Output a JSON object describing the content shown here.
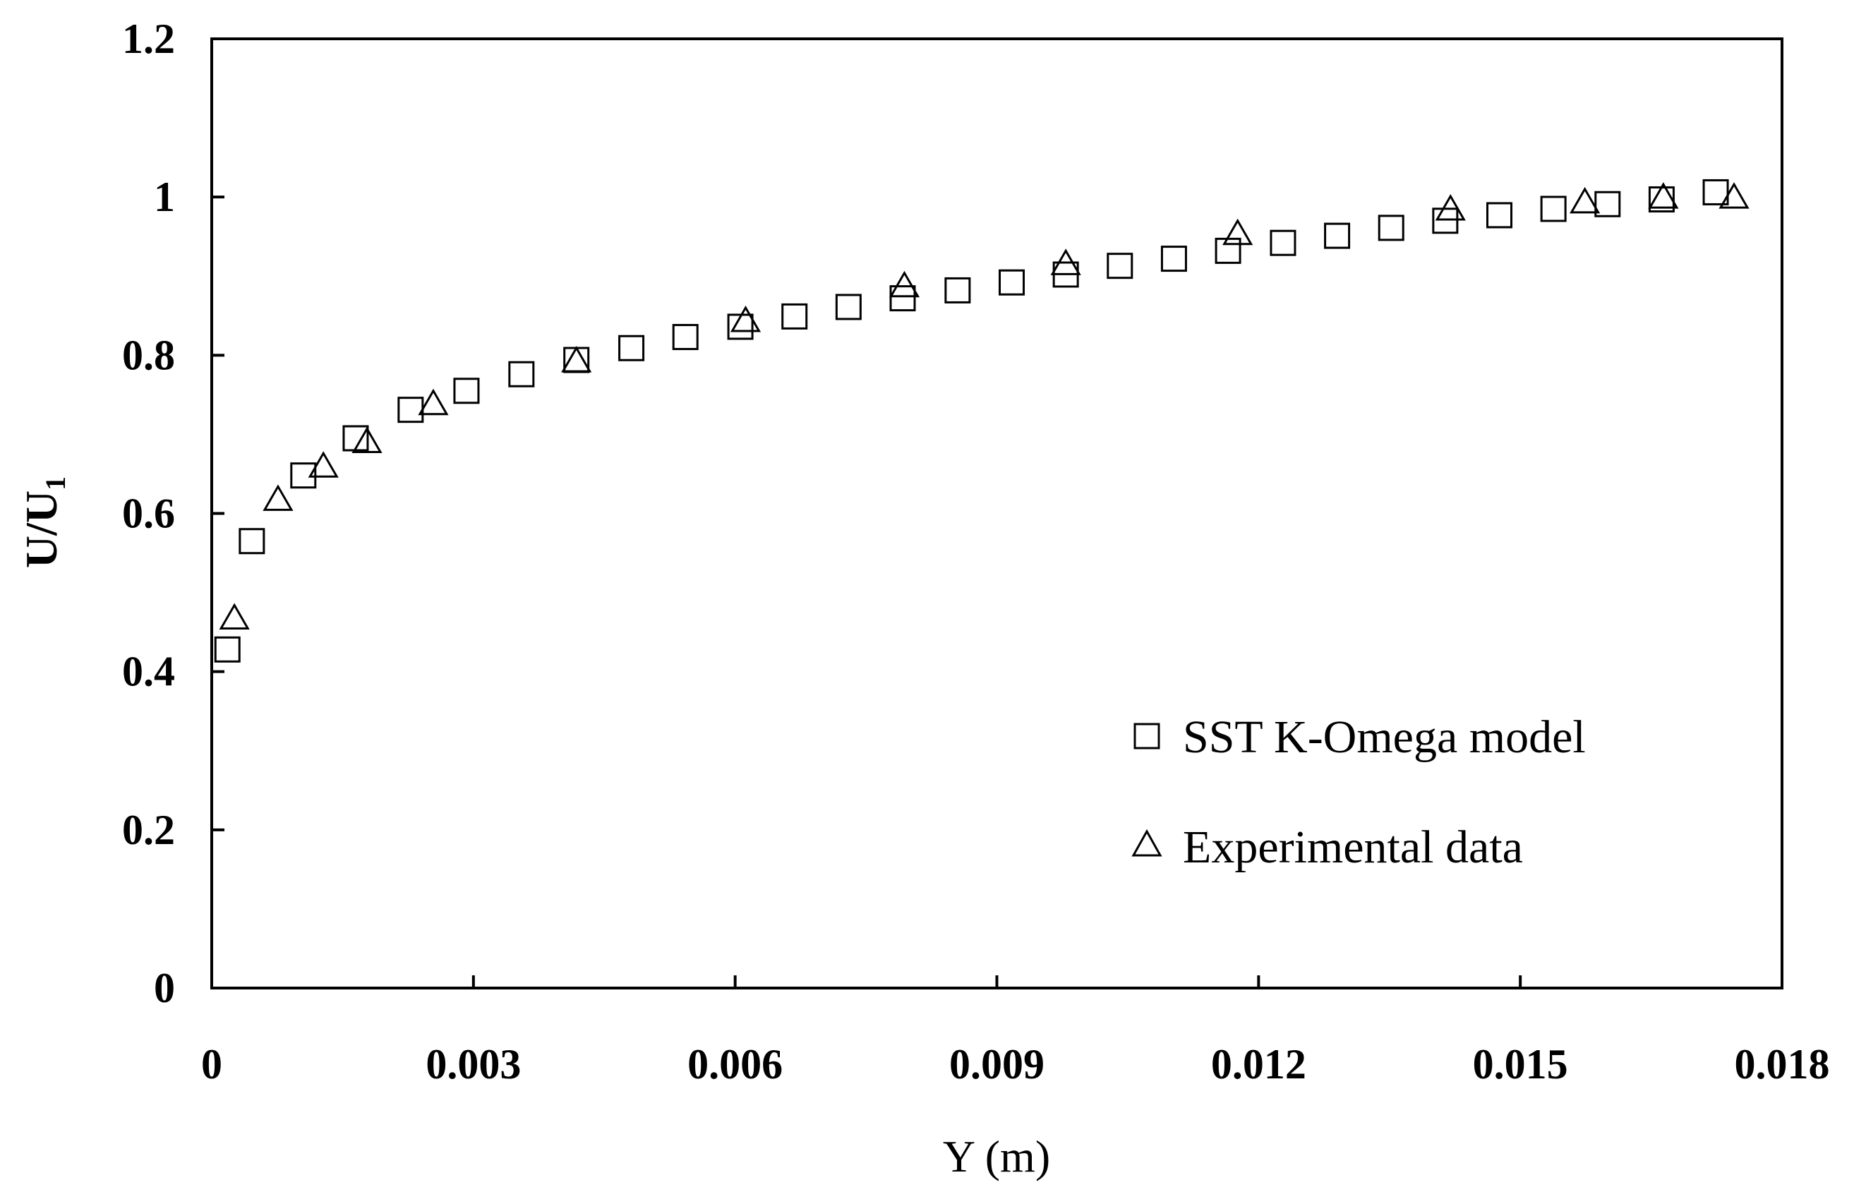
{
  "chart_data": {
    "type": "scatter",
    "title": "",
    "xlabel": "Y (m)",
    "ylabel": {
      "main": "U/U",
      "sub": "1"
    },
    "xlim": [
      0,
      0.018
    ],
    "ylim": [
      0,
      1.2
    ],
    "x_ticks": [
      {
        "value": 0,
        "label": "0"
      },
      {
        "value": 0.003,
        "label": "0.003"
      },
      {
        "value": 0.006,
        "label": "0.006"
      },
      {
        "value": 0.009,
        "label": "0.009"
      },
      {
        "value": 0.012,
        "label": "0.012"
      },
      {
        "value": 0.015,
        "label": "0.015"
      },
      {
        "value": 0.018,
        "label": "0.018"
      }
    ],
    "y_ticks": [
      {
        "value": 0,
        "label": "0"
      },
      {
        "value": 0.2,
        "label": "0.2"
      },
      {
        "value": 0.4,
        "label": "0.4"
      },
      {
        "value": 0.6,
        "label": "0.6"
      },
      {
        "value": 0.8,
        "label": "0.8"
      },
      {
        "value": 1.0,
        "label": "1"
      },
      {
        "value": 1.2,
        "label": "1.2"
      }
    ],
    "grid": false,
    "legend_position": "bottom-right",
    "series": [
      {
        "name": "SST K-Omega model",
        "marker": "square",
        "x": [
          0.00018,
          0.00046,
          0.00105,
          0.00165,
          0.00228,
          0.00292,
          0.00355,
          0.00418,
          0.00481,
          0.00543,
          0.00606,
          0.00668,
          0.0073,
          0.00792,
          0.00855,
          0.00917,
          0.00979,
          0.01041,
          0.01103,
          0.01165,
          0.01228,
          0.0129,
          0.01352,
          0.01414,
          0.01476,
          0.01538,
          0.016,
          0.01662,
          0.01724
        ],
        "y": [
          0.428,
          0.565,
          0.648,
          0.695,
          0.731,
          0.755,
          0.776,
          0.794,
          0.809,
          0.823,
          0.836,
          0.849,
          0.861,
          0.872,
          0.882,
          0.892,
          0.902,
          0.913,
          0.922,
          0.932,
          0.942,
          0.951,
          0.961,
          0.97,
          0.977,
          0.985,
          0.991,
          0.997,
          1.006
        ]
      },
      {
        "name": "Experimental data",
        "marker": "triangle",
        "x": [
          0.00026,
          0.00076,
          0.00128,
          0.00178,
          0.00254,
          0.00418,
          0.00612,
          0.00794,
          0.00979,
          0.01176,
          0.0142,
          0.01574,
          0.01664,
          0.01745
        ],
        "y": [
          0.468,
          0.618,
          0.66,
          0.691,
          0.739,
          0.793,
          0.844,
          0.888,
          0.916,
          0.954,
          0.985,
          0.994,
          1.0,
          1.0
        ]
      }
    ]
  }
}
